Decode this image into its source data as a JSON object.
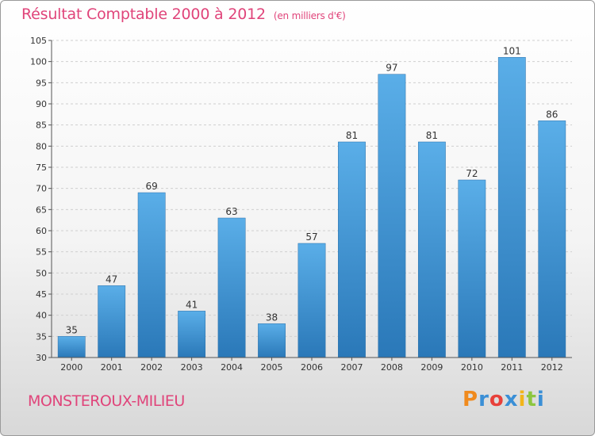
{
  "title": "Résultat Comptable 2000 à 2012",
  "subtitle": "(en milliers d'€)",
  "place": "MONSTEROUX-MILIEU",
  "logo": {
    "text": "Proxiti",
    "letters": [
      {
        "char": "P",
        "color": "#f08a1d"
      },
      {
        "char": "r",
        "color": "#3a8fd6"
      },
      {
        "char": "o",
        "color": "#e8403a"
      },
      {
        "char": "x",
        "color": "#3a8fd6"
      },
      {
        "char": "i",
        "color": "#f2b51a"
      },
      {
        "char": "t",
        "color": "#8cc63f"
      },
      {
        "char": "i",
        "color": "#3a8fd6"
      }
    ]
  },
  "chart_data": {
    "type": "bar",
    "title": "Résultat Comptable 2000 à 2012",
    "subtitle": "(en milliers d'€)",
    "categories": [
      "2000",
      "2001",
      "2002",
      "2003",
      "2004",
      "2005",
      "2006",
      "2007",
      "2008",
      "2009",
      "2010",
      "2011",
      "2012"
    ],
    "values": [
      35,
      47,
      69,
      41,
      63,
      38,
      57,
      81,
      97,
      81,
      72,
      101,
      86
    ],
    "ylim": [
      30,
      105
    ],
    "yticks": [
      30,
      35,
      40,
      45,
      50,
      55,
      60,
      65,
      70,
      75,
      80,
      85,
      90,
      95,
      100,
      105
    ],
    "grid": true,
    "bar_color": "#3d96dc"
  }
}
